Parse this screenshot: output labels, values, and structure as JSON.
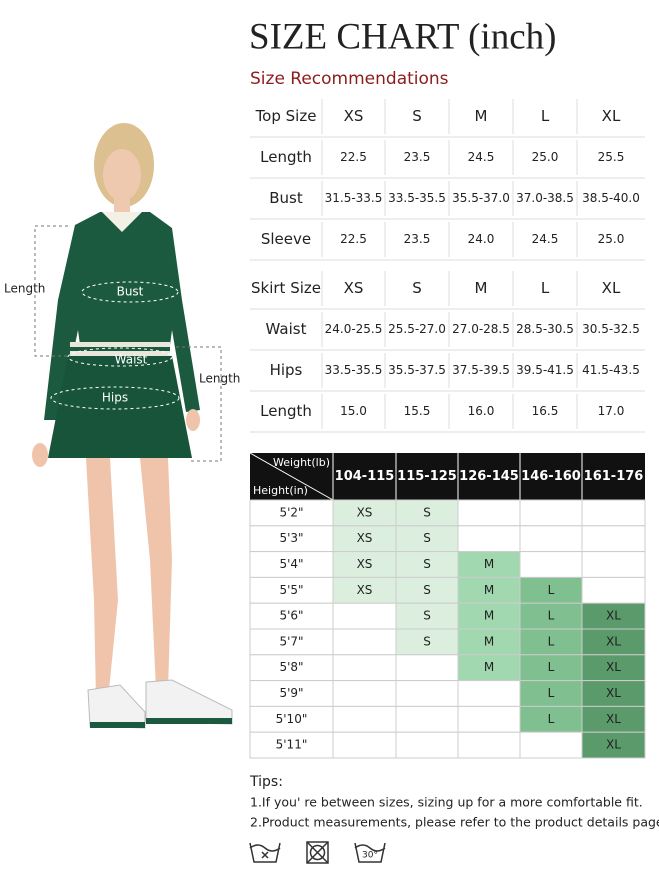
{
  "header": {
    "title": "SIZE CHART (inch)",
    "subtitle": "Size Recommendations"
  },
  "figure_labels": {
    "top_length": "Length",
    "bust": "Bust",
    "waist": "Waist",
    "hips": "Hips",
    "skirt_length": "Length"
  },
  "top_table": {
    "header": [
      "Top Size",
      "XS",
      "S",
      "M",
      "L",
      "XL"
    ],
    "rows": [
      [
        "Length",
        "22.5",
        "23.5",
        "24.5",
        "25.0",
        "25.5"
      ],
      [
        "Bust",
        "31.5-33.5",
        "33.5-35.5",
        "35.5-37.0",
        "37.0-38.5",
        "38.5-40.0"
      ],
      [
        "Sleeve",
        "22.5",
        "23.5",
        "24.0",
        "24.5",
        "25.0"
      ]
    ]
  },
  "skirt_table": {
    "header": [
      "Skirt Size",
      "XS",
      "S",
      "M",
      "L",
      "XL"
    ],
    "rows": [
      [
        "Waist",
        "24.0-25.5",
        "25.5-27.0",
        "27.0-28.5",
        "28.5-30.5",
        "30.5-32.5"
      ],
      [
        "Hips",
        "33.5-35.5",
        "35.5-37.5",
        "37.5-39.5",
        "39.5-41.5",
        "41.5-43.5"
      ],
      [
        "Length",
        "15.0",
        "15.5",
        "16.0",
        "16.5",
        "17.0"
      ]
    ]
  },
  "recommendation_table": {
    "corner_top": "Weight(lb)",
    "corner_bottom": "Height(in)",
    "columns": [
      "104-115",
      "115-125",
      "126-145",
      "146-160",
      "161-176"
    ],
    "column_colors": [
      "#dcefdf",
      "#dcefdf",
      "#a2d8b0",
      "#80bf8f",
      "#5b9a6b"
    ],
    "rows": [
      {
        "height": "5'2\"",
        "sizes": [
          "XS",
          "S",
          null,
          null,
          null
        ]
      },
      {
        "height": "5'3\"",
        "sizes": [
          "XS",
          "S",
          null,
          null,
          null
        ]
      },
      {
        "height": "5'4\"",
        "sizes": [
          "XS",
          "S",
          "M",
          null,
          null
        ]
      },
      {
        "height": "5'5\"",
        "sizes": [
          "XS",
          "S",
          "M",
          "L",
          null
        ]
      },
      {
        "height": "5'6\"",
        "sizes": [
          null,
          "S",
          "M",
          "L",
          "XL"
        ]
      },
      {
        "height": "5'7\"",
        "sizes": [
          null,
          "S",
          "M",
          "L",
          "XL"
        ]
      },
      {
        "height": "5'8\"",
        "sizes": [
          null,
          null,
          "M",
          "L",
          "XL"
        ]
      },
      {
        "height": "5'9\"",
        "sizes": [
          null,
          null,
          null,
          "L",
          "XL"
        ]
      },
      {
        "height": "5'10\"",
        "sizes": [
          null,
          null,
          null,
          "L",
          "XL"
        ]
      },
      {
        "height": "5'11\"",
        "sizes": [
          null,
          null,
          null,
          null,
          "XL"
        ]
      }
    ]
  },
  "tips": {
    "title": "Tips:",
    "items": [
      "1.If you' re between sizes, sizing up for a more comfortable fit.",
      "2.Product measurements, please refer to the product details page."
    ]
  },
  "care": {
    "wash_temperature": "30°"
  }
}
